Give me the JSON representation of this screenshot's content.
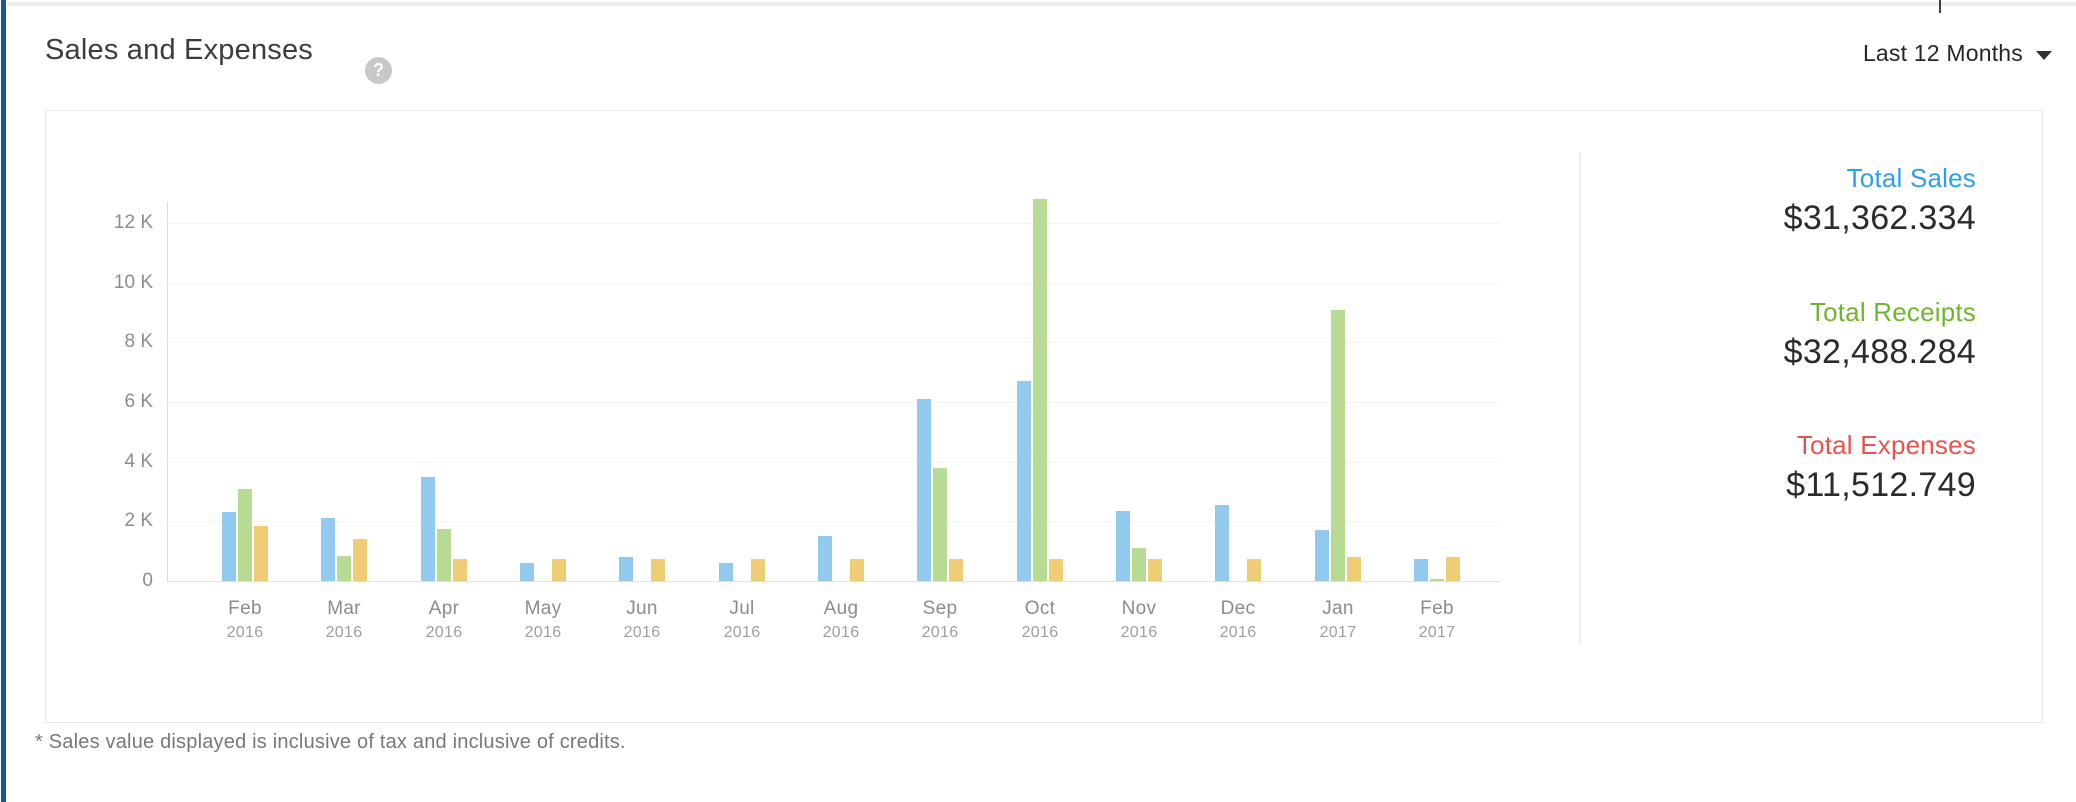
{
  "header": {
    "title": "Sales and Expenses",
    "help_icon": "?",
    "period_selector": {
      "label": "Last 12 Months"
    }
  },
  "summary": {
    "items": [
      {
        "label": "Total Sales",
        "value": "$31,362.334",
        "color": "#2e9fe8"
      },
      {
        "label": "Total Receipts",
        "value": "$32,488.284",
        "color": "#70b52f"
      },
      {
        "label": "Total Expenses",
        "value": "$11,512.749",
        "color": "#e7544f"
      }
    ]
  },
  "footnote": "* Sales value displayed is inclusive of tax and inclusive of credits.",
  "chart_data": {
    "type": "bar",
    "title": "Sales and Expenses",
    "xlabel": "",
    "ylabel": "",
    "ylim": [
      0,
      13000
    ],
    "grid": true,
    "legend_position": "none",
    "categories": [
      {
        "month": "Feb",
        "year": "2016"
      },
      {
        "month": "Mar",
        "year": "2016"
      },
      {
        "month": "Apr",
        "year": "2016"
      },
      {
        "month": "May",
        "year": "2016"
      },
      {
        "month": "Jun",
        "year": "2016"
      },
      {
        "month": "Jul",
        "year": "2016"
      },
      {
        "month": "Aug",
        "year": "2016"
      },
      {
        "month": "Sep",
        "year": "2016"
      },
      {
        "month": "Oct",
        "year": "2016"
      },
      {
        "month": "Nov",
        "year": "2016"
      },
      {
        "month": "Dec",
        "year": "2016"
      },
      {
        "month": "Jan",
        "year": "2017"
      },
      {
        "month": "Feb",
        "year": "2017"
      }
    ],
    "yticks": [
      {
        "value": 0,
        "label": "0"
      },
      {
        "value": 2000,
        "label": "2 K"
      },
      {
        "value": 4000,
        "label": "4 K"
      },
      {
        "value": 6000,
        "label": "6 K"
      },
      {
        "value": 8000,
        "label": "8 K"
      },
      {
        "value": 10000,
        "label": "10 K"
      },
      {
        "value": 12000,
        "label": "12 K"
      }
    ],
    "series": [
      {
        "name": "Sales",
        "color": "#92c9ee",
        "values": [
          2300,
          2100,
          3500,
          600,
          800,
          600,
          1500,
          6100,
          6700,
          2350,
          2550,
          1700,
          750
        ]
      },
      {
        "name": "Receipts",
        "color": "#b7db92",
        "values": [
          3100,
          850,
          1750,
          0,
          0,
          0,
          0,
          3800,
          12800,
          1100,
          0,
          9100,
          60
        ]
      },
      {
        "name": "Expenses",
        "color": "#eecd74",
        "values": [
          1850,
          1400,
          750,
          750,
          750,
          750,
          750,
          750,
          750,
          750,
          750,
          800,
          800
        ]
      }
    ]
  }
}
